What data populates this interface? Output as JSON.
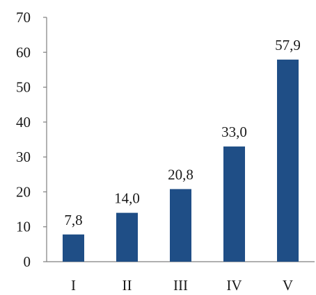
{
  "chart_data": {
    "type": "bar",
    "categories": [
      "I",
      "II",
      "III",
      "IV",
      "V"
    ],
    "values": [
      7.8,
      14.0,
      20.8,
      33.0,
      57.9
    ],
    "data_labels": [
      "7,8",
      "14,0",
      "20,8",
      "33,0",
      "57,9"
    ],
    "y_ticks": [
      0,
      10,
      20,
      30,
      40,
      50,
      60,
      70
    ],
    "ylim": [
      0,
      70
    ],
    "grid": false,
    "legend": "none",
    "bar_color": "#1F4E86"
  }
}
